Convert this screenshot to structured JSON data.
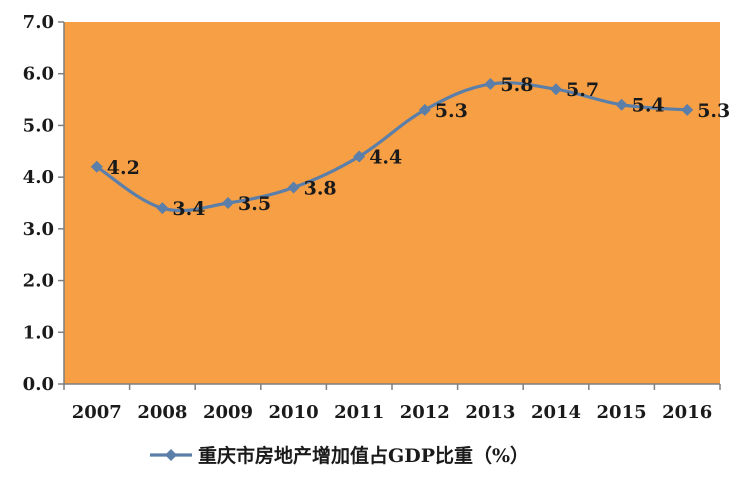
{
  "chart_data": {
    "type": "line",
    "title": "",
    "xlabel": "",
    "ylabel": "",
    "categories": [
      "2007",
      "2008",
      "2009",
      "2010",
      "2011",
      "2012",
      "2013",
      "2014",
      "2015",
      "2016"
    ],
    "series": [
      {
        "name": "重庆市房地产增加值占GDP比重（%）",
        "values": [
          4.2,
          3.4,
          3.5,
          3.8,
          4.4,
          5.3,
          5.8,
          5.7,
          5.4,
          5.3
        ],
        "labels": [
          "4.2",
          "3.4",
          "3.5",
          "3.8",
          "4.4",
          "5.3",
          "5.8",
          "5.7",
          "5.4",
          "5.3"
        ]
      }
    ],
    "ylim": [
      0,
      7
    ],
    "yticks": [
      "0.0",
      "1.0",
      "2.0",
      "3.0",
      "4.0",
      "5.0",
      "6.0",
      "7.0"
    ],
    "grid": false,
    "legend_position": "bottom",
    "colors": {
      "plot_background": "#F79F45",
      "line": "#5B7FA8",
      "axis": "#7f7f7f",
      "text": "#1a1a1a"
    }
  }
}
